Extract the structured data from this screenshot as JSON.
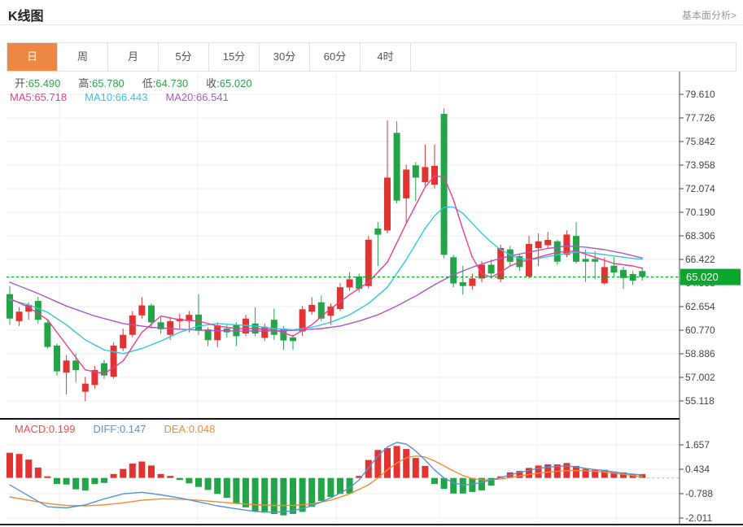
{
  "header": {
    "title": "K线图",
    "link": "基本面分析>"
  },
  "tabs": {
    "items": [
      {
        "label": "日",
        "active": true
      },
      {
        "label": "周",
        "active": false
      },
      {
        "label": "月",
        "active": false
      },
      {
        "label": "5分",
        "active": false
      },
      {
        "label": "15分",
        "active": false
      },
      {
        "label": "30分",
        "active": false
      },
      {
        "label": "60分",
        "active": false
      },
      {
        "label": "4时",
        "active": false
      }
    ]
  },
  "ohlc_legend": [
    {
      "label": "开:",
      "value": "65.490",
      "color": "#2aa64a"
    },
    {
      "label": "高:",
      "value": "65.780",
      "color": "#2aa64a"
    },
    {
      "label": "低:",
      "value": "64.730",
      "color": "#2aa64a"
    },
    {
      "label": "收:",
      "value": "65.020",
      "color": "#2aa64a"
    }
  ],
  "ma_legend": [
    {
      "label": "MA5:",
      "value": "65.718",
      "color": "#ea3e8e"
    },
    {
      "label": "MA10:",
      "value": "66.443",
      "color": "#33c7e0"
    },
    {
      "label": "MA20:",
      "value": "66.541",
      "color": "#b055c8"
    }
  ],
  "macd_legend": [
    {
      "label": "MACD:",
      "value": "0.199",
      "color": "#e0524a"
    },
    {
      "label": "DIFF:",
      "value": "0.147",
      "color": "#5693d6"
    },
    {
      "label": "DEA:",
      "value": "0.048",
      "color": "#ef8c35"
    }
  ],
  "colors": {
    "up": "#e13432",
    "down": "#23a447",
    "badge": "#0ba62e",
    "ma5": "#ea3e8e",
    "ma10": "#33c7e0",
    "ma20": "#b055c8",
    "diff": "#5693d6",
    "dea": "#ef8c35",
    "accent_tab": "#ee8743",
    "grid": "#ededed",
    "axis": "#444444"
  },
  "chart_data": {
    "type": "candlestick",
    "title": "K线图",
    "current_price": 65.02,
    "price_axis": {
      "range": [
        55.118,
        79.61
      ],
      "ticks": [
        79.61,
        77.726,
        75.842,
        73.958,
        72.074,
        70.19,
        68.306,
        66.422,
        64.538,
        62.654,
        60.77,
        58.886,
        57.002,
        55.118
      ]
    },
    "candles": [
      [
        63.65,
        64.3,
        61.2,
        61.7
      ],
      [
        61.49,
        62.6,
        61.1,
        62.25
      ],
      [
        62.25,
        63.0,
        61.6,
        62.79
      ],
      [
        63.11,
        63.44,
        61.3,
        61.6
      ],
      [
        61.38,
        61.6,
        59.3,
        59.43
      ],
      [
        59.54,
        59.7,
        57.15,
        57.48
      ],
      [
        57.38,
        58.78,
        55.64,
        58.35
      ],
      [
        58.35,
        58.9,
        56.6,
        57.59
      ],
      [
        55.85,
        57.05,
        55.1,
        56.5
      ],
      [
        56.4,
        57.9,
        56.1,
        57.59
      ],
      [
        58.13,
        58.4,
        56.9,
        57.15
      ],
      [
        57.05,
        59.8,
        56.9,
        59.54
      ],
      [
        59.32,
        60.9,
        59.1,
        60.4
      ],
      [
        60.4,
        62.3,
        60.2,
        61.95
      ],
      [
        61.95,
        63.4,
        61.7,
        62.75
      ],
      [
        62.75,
        62.9,
        60.9,
        61.4
      ],
      [
        61.4,
        61.8,
        60.5,
        60.85
      ],
      [
        60.4,
        61.8,
        60.0,
        61.49
      ],
      [
        61.49,
        62.1,
        60.9,
        61.7
      ],
      [
        61.5,
        62.3,
        60.6,
        62.0
      ],
      [
        62.02,
        63.65,
        60.4,
        60.72
      ],
      [
        60.83,
        61.0,
        59.5,
        59.97
      ],
      [
        59.97,
        61.4,
        59.4,
        61.16
      ],
      [
        60.9,
        61.2,
        60.2,
        60.6
      ],
      [
        61.16,
        61.4,
        59.5,
        60.29
      ],
      [
        60.51,
        62.0,
        60.3,
        61.7
      ],
      [
        61.3,
        62.6,
        60.3,
        60.5
      ],
      [
        60.16,
        61.3,
        59.9,
        61.05
      ],
      [
        61.6,
        62.5,
        60.0,
        60.4
      ],
      [
        60.9,
        61.1,
        59.2,
        59.95
      ],
      [
        60.2,
        60.4,
        59.2,
        59.9
      ],
      [
        60.67,
        62.7,
        60.3,
        62.44
      ],
      [
        62.25,
        63.4,
        62.0,
        62.79
      ],
      [
        63.0,
        63.54,
        61.5,
        61.7
      ],
      [
        61.92,
        62.9,
        61.2,
        62.67
      ],
      [
        62.46,
        64.52,
        62.3,
        64.2
      ],
      [
        64.19,
        65.4,
        63.9,
        64.84
      ],
      [
        65.06,
        65.3,
        63.8,
        64.08
      ],
      [
        64.3,
        68.3,
        64.1,
        68.0
      ],
      [
        68.9,
        69.4,
        65.9,
        68.4
      ],
      [
        68.74,
        77.51,
        68.5,
        72.96
      ],
      [
        76.54,
        77.45,
        70.9,
        71.12
      ],
      [
        71.3,
        74.0,
        69.3,
        73.6
      ],
      [
        73.94,
        74.2,
        71.1,
        72.96
      ],
      [
        72.6,
        75.6,
        72.3,
        73.8
      ],
      [
        72.4,
        75.6,
        72.1,
        73.9
      ],
      [
        78.05,
        78.5,
        66.5,
        66.79
      ],
      [
        66.6,
        66.8,
        64.2,
        64.5
      ],
      [
        64.6,
        65.9,
        63.6,
        64.3
      ],
      [
        64.3,
        65.3,
        64.0,
        64.9
      ],
      [
        64.9,
        66.3,
        64.6,
        66.0
      ],
      [
        66.0,
        66.4,
        64.9,
        65.3
      ],
      [
        64.84,
        67.6,
        64.6,
        67.33
      ],
      [
        67.22,
        67.5,
        65.9,
        66.24
      ],
      [
        66.68,
        66.9,
        65.5,
        65.81
      ],
      [
        65.06,
        68.3,
        64.9,
        67.66
      ],
      [
        67.33,
        68.5,
        65.9,
        67.87
      ],
      [
        67.55,
        68.63,
        67.3,
        67.98
      ],
      [
        67.87,
        68.0,
        66.0,
        66.24
      ],
      [
        66.79,
        68.74,
        66.6,
        68.41
      ],
      [
        68.3,
        69.39,
        66.1,
        66.24
      ],
      [
        66.46,
        67.22,
        64.62,
        66.24
      ],
      [
        66.46,
        67.11,
        64.84,
        66.24
      ],
      [
        64.51,
        66.57,
        64.4,
        65.81
      ],
      [
        65.92,
        66.6,
        65.1,
        65.37
      ],
      [
        65.59,
        65.8,
        64.08,
        64.94
      ],
      [
        65.26,
        65.5,
        64.4,
        64.72
      ],
      [
        65.49,
        65.78,
        64.73,
        65.02
      ]
    ],
    "ma_lines": {
      "ma5": {
        "points": [
          [
            0,
            63.3
          ],
          [
            2,
            62.6
          ],
          [
            4,
            61.6
          ],
          [
            6,
            59.6
          ],
          [
            8,
            57.6
          ],
          [
            10,
            57.3
          ],
          [
            12,
            58.3
          ],
          [
            14,
            60.6
          ],
          [
            16,
            61.9
          ],
          [
            18,
            61.6
          ],
          [
            20,
            61.5
          ],
          [
            22,
            61.1
          ],
          [
            24,
            60.9
          ],
          [
            26,
            60.9
          ],
          [
            28,
            60.8
          ],
          [
            30,
            60.3
          ],
          [
            32,
            61.2
          ],
          [
            34,
            62.5
          ],
          [
            36,
            63.6
          ],
          [
            38,
            64.6
          ],
          [
            40,
            66.2
          ],
          [
            42,
            69.3
          ],
          [
            44,
            72.2
          ],
          [
            45,
            73.1
          ],
          [
            46,
            73.0
          ],
          [
            47,
            71.2
          ],
          [
            48,
            68.8
          ],
          [
            49,
            66.6
          ],
          [
            50,
            65.3
          ],
          [
            51,
            65.0
          ],
          [
            52,
            65.4
          ],
          [
            53,
            65.9
          ],
          [
            54,
            66.2
          ],
          [
            56,
            66.6
          ],
          [
            58,
            67.0
          ],
          [
            60,
            67.1
          ],
          [
            62,
            66.6
          ],
          [
            64,
            66.1
          ],
          [
            66,
            65.9
          ],
          [
            67,
            65.72
          ]
        ]
      },
      "ma10": {
        "points": [
          [
            0,
            63.2
          ],
          [
            2,
            62.8
          ],
          [
            4,
            62.2
          ],
          [
            6,
            61.2
          ],
          [
            8,
            60.0
          ],
          [
            10,
            59.2
          ],
          [
            12,
            58.9
          ],
          [
            14,
            59.3
          ],
          [
            16,
            59.9
          ],
          [
            18,
            60.6
          ],
          [
            20,
            61.1
          ],
          [
            22,
            61.3
          ],
          [
            24,
            61.2
          ],
          [
            26,
            61.1
          ],
          [
            28,
            60.9
          ],
          [
            30,
            60.8
          ],
          [
            32,
            61.0
          ],
          [
            34,
            61.4
          ],
          [
            36,
            62.0
          ],
          [
            38,
            62.9
          ],
          [
            40,
            64.2
          ],
          [
            42,
            66.4
          ],
          [
            44,
            68.9
          ],
          [
            45,
            69.9
          ],
          [
            46,
            70.6
          ],
          [
            47,
            70.6
          ],
          [
            48,
            70.1
          ],
          [
            49,
            69.3
          ],
          [
            50,
            68.5
          ],
          [
            51,
            67.8
          ],
          [
            52,
            67.2
          ],
          [
            53,
            66.8
          ],
          [
            54,
            66.5
          ],
          [
            55,
            66.4
          ],
          [
            56,
            66.5
          ],
          [
            58,
            66.8
          ],
          [
            60,
            67.0
          ],
          [
            62,
            66.9
          ],
          [
            64,
            66.7
          ],
          [
            66,
            66.5
          ],
          [
            67,
            66.44
          ]
        ]
      },
      "ma20": {
        "points": [
          [
            0,
            64.6
          ],
          [
            3,
            63.7
          ],
          [
            6,
            62.7
          ],
          [
            9,
            61.9
          ],
          [
            12,
            61.3
          ],
          [
            15,
            61.0
          ],
          [
            18,
            60.85
          ],
          [
            21,
            60.75
          ],
          [
            24,
            60.7
          ],
          [
            27,
            60.7
          ],
          [
            30,
            60.75
          ],
          [
            33,
            60.9
          ],
          [
            35,
            61.1
          ],
          [
            37,
            61.5
          ],
          [
            39,
            62.0
          ],
          [
            41,
            62.7
          ],
          [
            43,
            63.5
          ],
          [
            45,
            64.4
          ],
          [
            47,
            65.2
          ],
          [
            49,
            65.8
          ],
          [
            51,
            66.3
          ],
          [
            53,
            66.7
          ],
          [
            55,
            67.0
          ],
          [
            57,
            67.3
          ],
          [
            59,
            67.5
          ],
          [
            61,
            67.4
          ],
          [
            63,
            67.2
          ],
          [
            65,
            66.9
          ],
          [
            67,
            66.54
          ]
        ]
      }
    },
    "macd": {
      "ticks": [
        1.657,
        0.434,
        -0.788,
        -2.011
      ],
      "histogram": [
        1.26,
        1.2,
        0.92,
        0.52,
        0.08,
        -0.3,
        -0.33,
        -0.57,
        -0.63,
        -0.31,
        -0.25,
        0.2,
        0.45,
        0.72,
        0.82,
        0.62,
        0.2,
        0.1,
        -0.1,
        -0.27,
        -0.45,
        -0.6,
        -0.8,
        -1.0,
        -1.27,
        -1.47,
        -1.67,
        -1.74,
        -1.81,
        -1.87,
        -1.8,
        -1.7,
        -1.45,
        -1.15,
        -0.95,
        -0.8,
        -0.78,
        0.1,
        0.9,
        1.4,
        1.5,
        1.6,
        1.45,
        1.0,
        0.6,
        -0.3,
        -0.55,
        -0.78,
        -0.78,
        -0.7,
        -0.62,
        -0.38,
        0.08,
        0.28,
        0.35,
        0.5,
        0.62,
        0.68,
        0.68,
        0.75,
        0.6,
        0.45,
        0.4,
        0.4,
        0.32,
        0.28,
        0.2,
        0.199
      ],
      "diff_points": [
        [
          0,
          -0.35
        ],
        [
          2,
          -0.9
        ],
        [
          4,
          -1.45
        ],
        [
          6,
          -1.5
        ],
        [
          8,
          -1.35
        ],
        [
          10,
          -1.05
        ],
        [
          12,
          -0.8
        ],
        [
          14,
          -0.72
        ],
        [
          16,
          -0.85
        ],
        [
          18,
          -1.0
        ],
        [
          20,
          -1.2
        ],
        [
          22,
          -1.4
        ],
        [
          24,
          -1.55
        ],
        [
          26,
          -1.68
        ],
        [
          28,
          -1.72
        ],
        [
          30,
          -1.65
        ],
        [
          32,
          -1.4
        ],
        [
          34,
          -1.0
        ],
        [
          36,
          -0.5
        ],
        [
          37,
          -0.1
        ],
        [
          38,
          0.5
        ],
        [
          39,
          1.1
        ],
        [
          40,
          1.55
        ],
        [
          41,
          1.78
        ],
        [
          42,
          1.7
        ],
        [
          43,
          1.35
        ],
        [
          44,
          0.9
        ],
        [
          45,
          0.4
        ],
        [
          46,
          0.0
        ],
        [
          47,
          -0.25
        ],
        [
          48,
          -0.35
        ],
        [
          49,
          -0.32
        ],
        [
          50,
          -0.22
        ],
        [
          51,
          -0.1
        ],
        [
          52,
          0.02
        ],
        [
          53,
          0.15
        ],
        [
          54,
          0.27
        ],
        [
          55,
          0.38
        ],
        [
          56,
          0.48
        ],
        [
          57,
          0.54
        ],
        [
          58,
          0.58
        ],
        [
          59,
          0.6
        ],
        [
          60,
          0.55
        ],
        [
          61,
          0.48
        ],
        [
          62,
          0.42
        ],
        [
          63,
          0.37
        ],
        [
          64,
          0.3
        ],
        [
          65,
          0.24
        ],
        [
          66,
          0.19
        ],
        [
          67,
          0.147
        ]
      ],
      "dea_points": [
        [
          0,
          -0.95
        ],
        [
          2,
          -1.12
        ],
        [
          4,
          -1.28
        ],
        [
          6,
          -1.38
        ],
        [
          8,
          -1.4
        ],
        [
          10,
          -1.35
        ],
        [
          12,
          -1.25
        ],
        [
          14,
          -1.12
        ],
        [
          16,
          -1.05
        ],
        [
          18,
          -1.06
        ],
        [
          20,
          -1.12
        ],
        [
          22,
          -1.2
        ],
        [
          24,
          -1.28
        ],
        [
          26,
          -1.34
        ],
        [
          28,
          -1.38
        ],
        [
          30,
          -1.38
        ],
        [
          32,
          -1.3
        ],
        [
          34,
          -1.12
        ],
        [
          36,
          -0.8
        ],
        [
          38,
          -0.35
        ],
        [
          39,
          0.0
        ],
        [
          40,
          0.4
        ],
        [
          41,
          0.75
        ],
        [
          42,
          1.0
        ],
        [
          43,
          1.1
        ],
        [
          44,
          1.05
        ],
        [
          45,
          0.85
        ],
        [
          46,
          0.6
        ],
        [
          47,
          0.35
        ],
        [
          48,
          0.12
        ],
        [
          49,
          -0.03
        ],
        [
          50,
          -0.1
        ],
        [
          51,
          -0.1
        ],
        [
          52,
          -0.05
        ],
        [
          53,
          0.02
        ],
        [
          54,
          0.1
        ],
        [
          55,
          0.17
        ],
        [
          56,
          0.24
        ],
        [
          57,
          0.29
        ],
        [
          58,
          0.33
        ],
        [
          59,
          0.36
        ],
        [
          60,
          0.37
        ],
        [
          61,
          0.36
        ],
        [
          62,
          0.33
        ],
        [
          63,
          0.29
        ],
        [
          64,
          0.24
        ],
        [
          65,
          0.18
        ],
        [
          66,
          0.12
        ],
        [
          67,
          0.048
        ]
      ]
    }
  }
}
